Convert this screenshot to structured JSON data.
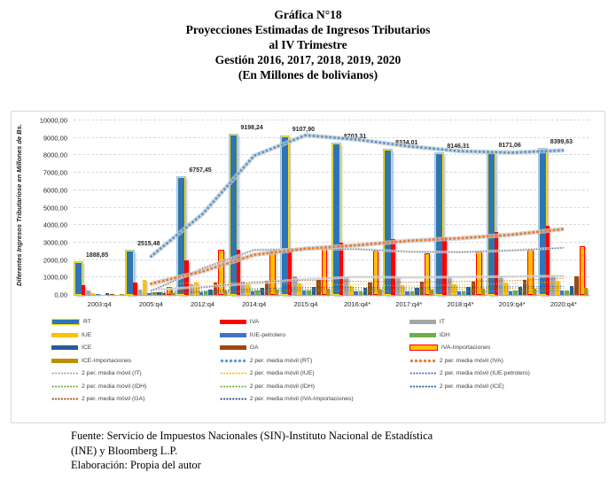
{
  "title": {
    "lines": [
      "Gráfica N°18",
      "Proyecciones Estimadas de Ingresos Tributarios",
      "al IV Trimestre",
      "Gestión 2016, 2017, 2018, 2019, 2020",
      "(En Millones de bolivianos)"
    ]
  },
  "chart_data": {
    "type": "bar",
    "title": "Proyecciones Estimadas de Ingresos Tributarios al IV Trimestre",
    "ylabel": "Diferentes Ingresos Tributariose en Millones de Bs.",
    "xlabel": "",
    "ylim": [
      0,
      10000
    ],
    "ytick_step": 1000,
    "ytick_labels": [
      "0,00",
      "1000,00",
      "2000,00",
      "3000,00",
      "4000,00",
      "5000,00",
      "6000,00",
      "7000,00",
      "8000,00",
      "9000,00",
      "10000,00"
    ],
    "grid": true,
    "legend_position": "bottom",
    "categories": [
      "2003:q4",
      "2005:q4",
      "2012:q4",
      "2014:q4",
      "2015:q4",
      "2016:q4*",
      "2017:q4*",
      "2018:q4*",
      "2019:q4*",
      "2020:q4*"
    ],
    "series": [
      {
        "name": "RT",
        "color": "#2E75B6",
        "border": "#FFE000",
        "values": [
          1888.85,
          2515.48,
          6757.45,
          9198.24,
          9107.9,
          8703.31,
          8334.01,
          8146.31,
          8171.06,
          8399.63
        ],
        "point_labels": [
          "1888,85",
          "2515,48",
          "6757,45",
          "9198,24",
          "9107,90",
          "8703,31",
          "8334,01",
          "8146,31",
          "8171,06",
          "8399,63"
        ]
      },
      {
        "name": "IVA",
        "color": "#FF0000",
        "border": "",
        "values": [
          580,
          700,
          2000,
          2600,
          2700,
          3000,
          3200,
          3300,
          3600,
          3950
        ]
      },
      {
        "name": "IT",
        "color": "#A6A6A6",
        "border": "",
        "values": [
          250,
          320,
          600,
          750,
          1050,
          1000,
          1000,
          1050,
          1050,
          1100
        ]
      },
      {
        "name": "IUE",
        "color": "#FFC000",
        "border": "",
        "values": [
          120,
          850,
          700,
          600,
          650,
          500,
          550,
          600,
          700,
          800
        ]
      },
      {
        "name": "IUE-petrolero",
        "color": "#4472C4",
        "border": "",
        "values": [
          30,
          80,
          150,
          200,
          250,
          200,
          180,
          200,
          220,
          250
        ]
      },
      {
        "name": "IDH",
        "color": "#70AD47",
        "border": "",
        "values": [
          0,
          150,
          200,
          250,
          250,
          200,
          200,
          220,
          230,
          250
        ]
      },
      {
        "name": "ICE",
        "color": "#255E91",
        "border": "",
        "values": [
          90,
          150,
          300,
          400,
          450,
          400,
          420,
          450,
          480,
          500
        ]
      },
      {
        "name": "GA",
        "color": "#9E480E",
        "border": "",
        "values": [
          60,
          120,
          700,
          800,
          850,
          700,
          750,
          780,
          850,
          1050
        ]
      },
      {
        "name": "IVA-Importaciones",
        "color": "#FFC000",
        "border": "#FF0000",
        "values": [
          0,
          450,
          2600,
          2550,
          2700,
          2550,
          2400,
          2500,
          2600,
          2800
        ]
      },
      {
        "name": "ICE-Importaciones",
        "color": "#BF8F00",
        "border": "",
        "values": [
          30,
          80,
          250,
          300,
          350,
          300,
          320,
          350,
          380,
          400
        ]
      }
    ],
    "trendlines": [
      {
        "series": "IT",
        "label": "2 per. media móvil (IT)",
        "color": "#A6A6A6",
        "style": "small",
        "halo": true
      },
      {
        "series": "IUE",
        "label": "2 per. media móvil (IUE)",
        "color": "#FFC000",
        "style": "small",
        "halo": false
      },
      {
        "series": "IUE-petrolero",
        "label": "2 per. media móvil (IUE-petrolero)",
        "color": "#4472C4",
        "style": "small",
        "halo": false
      },
      {
        "series": "IDH",
        "label": "2 per. media móvil (IDH)",
        "color": "#70AD47",
        "style": "small",
        "halo": false
      },
      {
        "series": "ICE",
        "label": "2 per. media móvil (ICE)",
        "color": "#255E91",
        "style": "small",
        "halo": false
      },
      {
        "series": "GA",
        "label": "2 per. media móvil (GA)",
        "color": "#9E480E",
        "style": "small",
        "halo": false
      },
      {
        "series": "ICE-Importaciones",
        "label": "2 per. media móvil (ICE-Importaciones)",
        "color": "#997300",
        "style": "small",
        "halo": false
      },
      {
        "series": "IVA-Importaciones",
        "label": "2 per. media móvil (IVA-Importaciones)",
        "color": "#264478",
        "style": "small",
        "halo": true
      },
      {
        "series": "IVA",
        "label": "2 per. media móvil (IVA)",
        "color": "#ED7D31",
        "style": "big",
        "halo": true
      },
      {
        "series": "RT",
        "label": "2 per. media móvil (RT)",
        "color": "#5B9BD5",
        "style": "big",
        "halo": true
      }
    ]
  },
  "legend": {
    "items": [
      {
        "label": "RT",
        "type": "bar",
        "color": "#2E75B6",
        "border": "#FFE000"
      },
      {
        "label": "IVA",
        "type": "bar",
        "color": "#FF0000",
        "border": ""
      },
      {
        "label": "IT",
        "type": "bar",
        "color": "#A6A6A6",
        "border": ""
      },
      {
        "label": "IUE",
        "type": "bar",
        "color": "#FFC000",
        "border": ""
      },
      {
        "label": "IUE-petrolero",
        "type": "bar",
        "color": "#4472C4",
        "border": ""
      },
      {
        "label": "IDH",
        "type": "bar",
        "color": "#70AD47",
        "border": ""
      },
      {
        "label": "ICE",
        "type": "bar",
        "color": "#255E91",
        "border": ""
      },
      {
        "label": "GA",
        "type": "bar",
        "color": "#9E480E",
        "border": ""
      },
      {
        "label": "IVA-Importaciones",
        "type": "bar",
        "color": "#FFC000",
        "border": "#FF0000"
      },
      {
        "label": "ICE-Importaciones",
        "type": "bar",
        "color": "#BF8F00",
        "border": ""
      },
      {
        "label": "2 per. media móvil (RT)",
        "type": "dots-big",
        "color": "#5B9BD5",
        "border": ""
      },
      {
        "label": "2 per. media móvil (IVA)",
        "type": "dots-big",
        "color": "#ED7D31",
        "border": ""
      },
      {
        "label": "2 per. media móvil (IT)",
        "type": "dots-small",
        "color": "#A6A6A6",
        "border": ""
      },
      {
        "label": "2 per. media móvil (IUE)",
        "type": "dots-small",
        "color": "#FFC000",
        "border": ""
      },
      {
        "label": "2 per. media móvil (IUE-petrolero)",
        "type": "dots-small",
        "color": "#4472C4",
        "border": ""
      },
      {
        "label": "2 per. media móvil (IDH)",
        "type": "dots-small",
        "color": "#70AD47",
        "border": ""
      },
      {
        "label": "2 per. media móvil (IDH)",
        "type": "dots-small",
        "color": "#70AD47",
        "border": ""
      },
      {
        "label": "2 per. media móvil (ICE)",
        "type": "dots-small",
        "color": "#255E91",
        "border": ""
      },
      {
        "label": "2 per. media móvil (GA)",
        "type": "dots-small",
        "color": "#9E480E",
        "border": ""
      },
      {
        "label": "2 per. media móvil (IVA-Importaciones)",
        "type": "dots-small",
        "color": "#264478",
        "border": ""
      }
    ]
  },
  "footer": {
    "lines": [
      "Fuente: Servicio de Impuestos Nacionales (SIN)-Instituto Nacional de Estadística",
      "(INE) y Bloomberg L.P.",
      "Elaboración: Propia del autor"
    ]
  }
}
